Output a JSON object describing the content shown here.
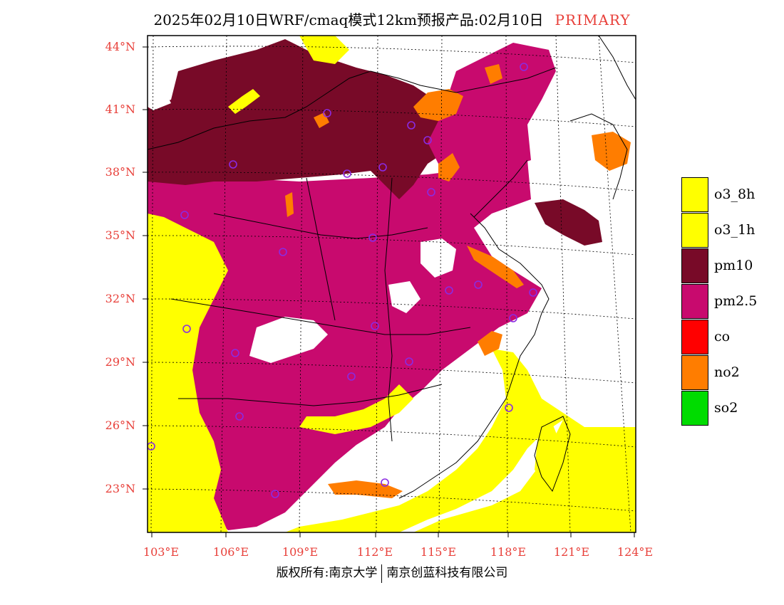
{
  "title": {
    "main": "2025年02月10日WRF/cmaq模式12km预报产品:02月10日",
    "tag": "PRIMARY"
  },
  "axes": {
    "lat_labels": [
      "44°N",
      "41°N",
      "38°N",
      "35°N",
      "32°N",
      "29°N",
      "26°N",
      "23°N"
    ],
    "lon_labels": [
      "103°E",
      "106°E",
      "109°E",
      "112°E",
      "115°E",
      "118°E",
      "121°E",
      "124°E"
    ]
  },
  "legend": {
    "items": [
      {
        "label": "o3_8h",
        "color": "#ffff00"
      },
      {
        "label": "o3_1h",
        "color": "#ffff00"
      },
      {
        "label": "pm10",
        "color": "#780a28"
      },
      {
        "label": "pm2.5",
        "color": "#c80a6e"
      },
      {
        "label": "co",
        "color": "#ff0000"
      },
      {
        "label": "no2",
        "color": "#ff7d00"
      },
      {
        "label": "so2",
        "color": "#00dc00"
      }
    ]
  },
  "footer": {
    "left": "版权所有:南京大学",
    "right": "南京创蓝科技有限公司"
  },
  "colors": {
    "o3": "#ffff00",
    "pm10": "#780a28",
    "pm25": "#c80a6e",
    "no2": "#ff7d00",
    "station": "#8a2be2",
    "axis_text": "#e8403a"
  }
}
